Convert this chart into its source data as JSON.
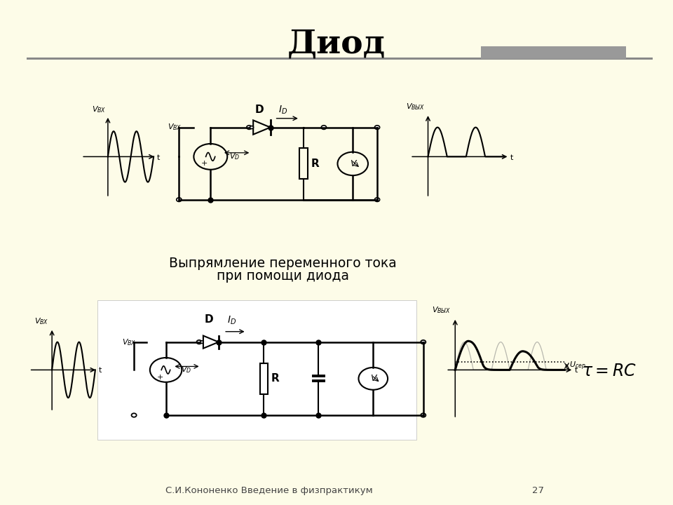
{
  "title": "Диод",
  "bg_color": "#FDFCE8",
  "panel1_bg": "#FFFFFF",
  "caption_line1": "Выпрямление переменного тока",
  "caption_line2": "при помощи диода",
  "footer": "С.И.Кононенко Введение в физпрактикум",
  "footer_page": "27",
  "line_color": "#888888",
  "accent_bar_color": "#999999"
}
